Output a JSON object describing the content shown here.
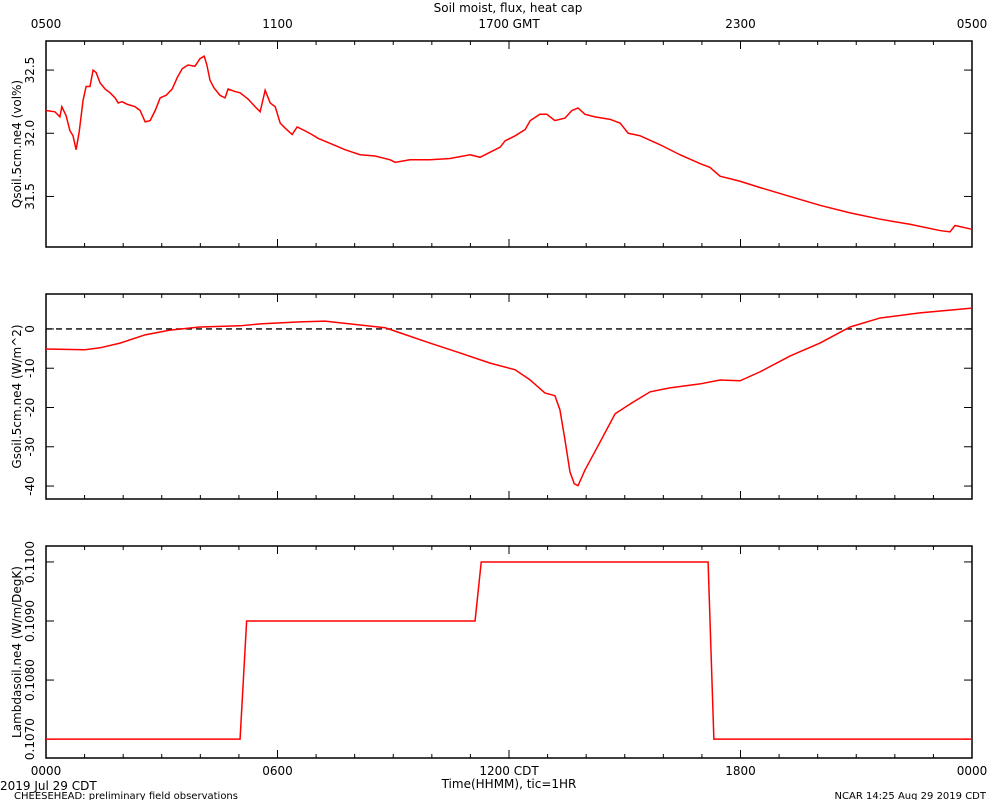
{
  "title": "Soil moist, flux, heat cap",
  "footer": {
    "date": "2019 Jul 29 CDT",
    "project": "CHEESEHEAD: preliminary field observations",
    "stamp": "NCAR 14:25 Aug 29 2019 CDT"
  },
  "chart_data": [
    {
      "type": "line",
      "ylabel": "Qsoil.5cm.ne4 (vol%)",
      "color": "#ff0000",
      "xlim": [
        0,
        24
      ],
      "ylim": [
        31.1,
        32.73
      ],
      "yticks": [
        31.5,
        {
          "value": 32.0,
          "label": "32.0"
        },
        32.5
      ],
      "x2ticks": [
        {
          "value": 0,
          "label": "0500"
        },
        {
          "value": 6,
          "label": "1100"
        },
        {
          "value": 12,
          "label": "1700 GMT"
        },
        {
          "value": 18,
          "label": "2300"
        },
        {
          "value": 24,
          "label": "0500"
        }
      ],
      "x": [
        0,
        0.23,
        0.36,
        0.41,
        0.52,
        0.62,
        0.7,
        0.78,
        0.86,
        0.96,
        1.04,
        1.14,
        1.22,
        1.3,
        1.4,
        1.53,
        1.66,
        1.79,
        1.87,
        1.97,
        2.1,
        2.31,
        2.44,
        2.57,
        2.7,
        2.83,
        2.96,
        3.11,
        3.27,
        3.4,
        3.53,
        3.68,
        3.86,
        3.99,
        4.1,
        4.17,
        4.25,
        4.35,
        4.51,
        4.64,
        4.72,
        4.9,
        5.03,
        5.24,
        5.42,
        5.55,
        5.68,
        5.81,
        5.94,
        6.07,
        6.2,
        6.38,
        6.51,
        6.71,
        6.89,
        7.05,
        7.36,
        7.75,
        8.14,
        8.53,
        8.92,
        9.05,
        9.43,
        9.95,
        10.47,
        10.99,
        11.25,
        11.51,
        11.77,
        11.9,
        12.16,
        12.42,
        12.55,
        12.8,
        12.98,
        13.19,
        13.45,
        13.63,
        13.79,
        13.97,
        14.23,
        14.62,
        14.88,
        15.09,
        15.4,
        15.91,
        16.43,
        16.95,
        17.21,
        17.47,
        17.99,
        18.51,
        19.28,
        20.06,
        20.84,
        21.62,
        22.39,
        23.17,
        23.43,
        23.56,
        24
      ],
      "values": [
        32.18,
        32.17,
        32.13,
        32.21,
        32.14,
        32.02,
        31.98,
        31.87,
        32.01,
        32.26,
        32.37,
        32.37,
        32.5,
        32.48,
        32.4,
        32.35,
        32.32,
        32.28,
        32.24,
        32.25,
        32.23,
        32.21,
        32.18,
        32.09,
        32.1,
        32.18,
        32.28,
        32.3,
        32.35,
        32.44,
        32.51,
        32.54,
        32.53,
        32.59,
        32.61,
        32.54,
        32.42,
        32.36,
        32.3,
        32.28,
        32.35,
        32.33,
        32.32,
        32.27,
        32.21,
        32.17,
        32.34,
        32.24,
        32.21,
        32.08,
        32.04,
        31.99,
        32.05,
        32.02,
        31.99,
        31.96,
        31.92,
        31.87,
        31.83,
        31.82,
        31.79,
        31.77,
        31.79,
        31.79,
        31.8,
        31.83,
        31.81,
        31.85,
        31.89,
        31.94,
        31.98,
        32.03,
        32.1,
        32.15,
        32.15,
        32.1,
        32.12,
        32.18,
        32.2,
        32.15,
        32.13,
        32.11,
        32.08,
        32.0,
        31.98,
        31.91,
        31.83,
        31.76,
        31.73,
        31.66,
        31.62,
        31.57,
        31.5,
        31.43,
        31.37,
        31.32,
        31.28,
        31.23,
        31.22,
        31.27,
        31.24
      ]
    },
    {
      "type": "line",
      "ylabel": "Gsoil.5cm.ne4 (W/m^2)",
      "color": "#ff0000",
      "zero_line": true,
      "xlim": [
        0,
        24
      ],
      "ylim": [
        -43.3,
        8.9
      ],
      "yticks": [
        -40,
        -30,
        -20,
        -10,
        0
      ],
      "x": [
        0,
        1.01,
        1.4,
        1.92,
        2.57,
        3.21,
        3.99,
        5.03,
        5.55,
        6.58,
        7.23,
        8.14,
        8.79,
        9.18,
        9.95,
        10.73,
        11.51,
        12.16,
        12.55,
        12.93,
        13.19,
        13.32,
        13.45,
        13.58,
        13.69,
        13.79,
        13.97,
        14.36,
        14.75,
        15.14,
        15.66,
        16.17,
        16.95,
        17.47,
        17.99,
        18.51,
        19.28,
        20.06,
        20.84,
        21.62,
        22.65,
        24
      ],
      "values": [
        -5.1,
        -5.3,
        -4.8,
        -3.6,
        -1.5,
        -0.3,
        0.5,
        0.8,
        1.3,
        1.8,
        2.0,
        1.0,
        0.3,
        -1.0,
        -3.6,
        -6.1,
        -8.7,
        -10.4,
        -13.0,
        -16.3,
        -17.0,
        -20.6,
        -28.2,
        -36.4,
        -39.4,
        -39.9,
        -35.9,
        -28.8,
        -21.6,
        -19.1,
        -16.0,
        -15.0,
        -14.0,
        -13.0,
        -13.2,
        -10.9,
        -6.9,
        -3.6,
        0.5,
        2.8,
        4.1,
        5.3
      ]
    },
    {
      "type": "line",
      "ylabel": "Lambdasoil.ne4 (W/m/DegK)",
      "color": "#ff0000",
      "xlabel": "Time(HHMM), tic=1HR",
      "xlim": [
        0,
        24
      ],
      "ylim": [
        0.10668,
        0.11027
      ],
      "yticks": [
        {
          "value": 0.107,
          "label": "0.1070"
        },
        {
          "value": 0.108,
          "label": "0.1080"
        },
        {
          "value": 0.109,
          "label": "0.1090"
        },
        {
          "value": 0.11,
          "label": "0.1100"
        }
      ],
      "xticks": [
        {
          "value": 0,
          "label": "0000"
        },
        {
          "value": 6,
          "label": "0600"
        },
        {
          "value": 12,
          "label": "1200 CDT"
        },
        {
          "value": 18,
          "label": "1800"
        },
        {
          "value": 24,
          "label": "0000"
        }
      ],
      "xminorticks": [
        1,
        2,
        3,
        4,
        5,
        7,
        8,
        9,
        10,
        11,
        13,
        14,
        15,
        16,
        17,
        19,
        20,
        21,
        22,
        23
      ],
      "x": [
        0,
        5.03,
        5.2,
        11.12,
        11.28,
        17.16,
        17.31,
        24
      ],
      "values": [
        0.107,
        0.107,
        0.109,
        0.109,
        0.11,
        0.11,
        0.107,
        0.107
      ]
    }
  ]
}
